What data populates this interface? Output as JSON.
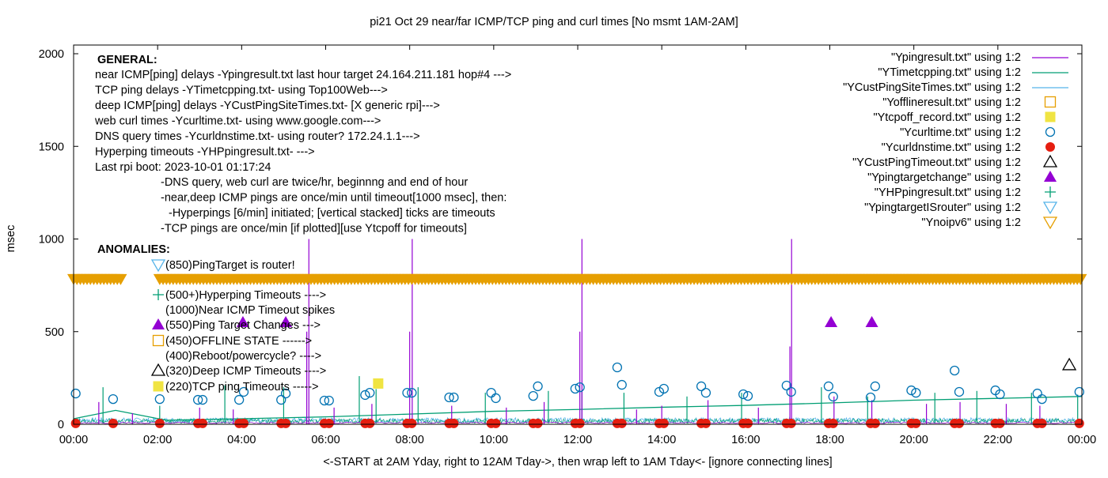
{
  "chart_data": {
    "type": "line",
    "title": "pi21 Oct 29  near/far ICMP/TCP ping and curl times [No msmt 1AM-2AM]",
    "xlabel": "<-START at 2AM Yday, right to 12AM Tday->, then wrap left to 1AM Tday<- [ignore connecting lines]",
    "ylabel": "msec",
    "xlim": [
      0,
      24
    ],
    "ylim": [
      0,
      2000
    ],
    "x_ticks": [
      "00:00",
      "02:00",
      "04:00",
      "06:00",
      "08:00",
      "10:00",
      "12:00",
      "14:00",
      "16:00",
      "18:00",
      "20:00",
      "22:00",
      "00:00"
    ],
    "y_ticks": [
      "0",
      "500",
      "1000",
      "1500",
      "2000"
    ],
    "colors": {
      "ypingresult": "#9400d3",
      "ytimetcpping": "#009e73",
      "ycustping": "#56b4e9",
      "offline": "#e69f00",
      "tcpoff": "#f0e442",
      "curl": "#0072b2",
      "dns": "#e51e10",
      "custtimeout": "#000000",
      "targetchange": "#9400d3",
      "hyperping": "#009e73",
      "isrouter": "#56b4e9",
      "noipv6": "#e69f00"
    },
    "general": {
      "heading": "GENERAL:",
      "lines": [
        "near ICMP[ping] delays -Ypingresult.txt last hour target 24.164.211.181 hop#4 --->",
        "TCP ping delays -YTimetcpping.txt- using Top100Web--->",
        "deep ICMP[ping] delays -YCustPingSiteTimes.txt- [X generic rpi]--->",
        "web curl times -Ycurltime.txt- using www.google.com--->",
        "DNS query times -Ycurldnstime.txt- using router? 172.24.1.1--->",
        "Hyperping timeouts -YHPpingresult.txt- --->",
        "Last rpi boot: 2023-10-01 01:17:24"
      ],
      "notes": [
        "-DNS query, web curl are twice/hr, beginnng and end of hour",
        "-near,deep ICMP pings are once/min until timeout[1000 msec], then:",
        "-Hyperpings [6/min] initiated; [vertical stacked] ticks are timeouts",
        "-TCP pings are once/min [if plotted][use Ytcpoff for timeouts]"
      ]
    },
    "anomalies": {
      "heading": "ANOMALIES:",
      "items": [
        {
          "label": "(850)PingTarget is router!",
          "marker": "isrouter"
        },
        {
          "label": "(500+)Hyperping Timeouts ---->",
          "marker": "hyperping"
        },
        {
          "label": "(1000)Near ICMP Timeout spikes",
          "marker": ""
        },
        {
          "label": "(550)Ping Target Changes --->",
          "marker": "targetchange"
        },
        {
          "label": "(450)OFFLINE STATE ------>",
          "marker": "offline"
        },
        {
          "label": "(400)Reboot/powercycle? ---->",
          "marker": ""
        },
        {
          "label": "(320)Deep ICMP Timeouts ---->",
          "marker": "custtimeout"
        },
        {
          "label": "(220)TCP ping Timeouts ----->",
          "marker": "tcpoff"
        }
      ]
    },
    "legend": [
      {
        "label": "\"Ypingresult.txt\" using 1:2",
        "key": "ypingresult",
        "style": "line"
      },
      {
        "label": "\"YTimetcpping.txt\" using 1:2",
        "key": "ytimetcpping",
        "style": "line"
      },
      {
        "label": "\"YCustPingSiteTimes.txt\" using 1:2",
        "key": "ycustping",
        "style": "line"
      },
      {
        "label": "\"Yofflineresult.txt\" using 1:2",
        "key": "offline",
        "style": "open-square"
      },
      {
        "label": "\"Ytcpoff_record.txt\" using 1:2",
        "key": "tcpoff",
        "style": "filled-square"
      },
      {
        "label": "\"Ycurltime.txt\" using 1:2",
        "key": "curl",
        "style": "open-circle"
      },
      {
        "label": "\"Ycurldnstime.txt\" using 1:2",
        "key": "dns",
        "style": "filled-circle"
      },
      {
        "label": "\"YCustPingTimeout.txt\" using 1:2",
        "key": "custtimeout",
        "style": "open-triangle"
      },
      {
        "label": "\"Ypingtargetchange\" using 1:2",
        "key": "targetchange",
        "style": "filled-triangle"
      },
      {
        "label": "\"YHPpingresult.txt\" using 1:2",
        "key": "hyperping",
        "style": "plus"
      },
      {
        "label": "\"YpingtargetISrouter\" using 1:2",
        "key": "isrouter",
        "style": "open-down-triangle"
      },
      {
        "label": "\"Ynoipv6\" using 1:2",
        "key": "noipv6",
        "style": "open-down-triangle"
      }
    ],
    "series": {
      "ypingresult_baseline": 8,
      "ypingresult_spikes": [
        [
          0.6,
          120
        ],
        [
          1.4,
          60
        ],
        [
          3.0,
          90
        ],
        [
          3.8,
          80
        ],
        [
          5.6,
          1000
        ],
        [
          5.55,
          500
        ],
        [
          6.2,
          90
        ],
        [
          7.1,
          110
        ],
        [
          8.06,
          1000
        ],
        [
          8.0,
          500
        ],
        [
          9.0,
          100
        ],
        [
          10.3,
          90
        ],
        [
          11.2,
          120
        ],
        [
          12.1,
          1000
        ],
        [
          12.05,
          500
        ],
        [
          13.4,
          80
        ],
        [
          14.0,
          100
        ],
        [
          15.1,
          130
        ],
        [
          16.3,
          90
        ],
        [
          17.09,
          1000
        ],
        [
          17.05,
          420
        ],
        [
          18.1,
          150
        ],
        [
          19.0,
          130
        ],
        [
          20.3,
          110
        ],
        [
          21.1,
          120
        ],
        [
          22.2,
          110
        ],
        [
          23.0,
          100
        ]
      ],
      "ytimetcpping_trend": [
        [
          0,
          30
        ],
        [
          1.0,
          75
        ],
        [
          2.2,
          22
        ],
        [
          4,
          30
        ],
        [
          6,
          40
        ],
        [
          8,
          55
        ],
        [
          10,
          70
        ],
        [
          12,
          80
        ],
        [
          14,
          92
        ],
        [
          16,
          102
        ],
        [
          18,
          115
        ],
        [
          20,
          130
        ],
        [
          22,
          140
        ],
        [
          24,
          150
        ]
      ],
      "ytimetcpping_spikes": [
        [
          0.7,
          200
        ],
        [
          2.05,
          100
        ],
        [
          3.6,
          210
        ],
        [
          5.0,
          200
        ],
        [
          6.8,
          260
        ],
        [
          7.2,
          190
        ],
        [
          8.2,
          200
        ],
        [
          9.8,
          170
        ],
        [
          11.3,
          180
        ],
        [
          12.1,
          180
        ],
        [
          13.1,
          170
        ],
        [
          14.6,
          150
        ],
        [
          15.9,
          170
        ],
        [
          17.8,
          200
        ],
        [
          18.9,
          150
        ],
        [
          20.5,
          170
        ],
        [
          21.5,
          180
        ],
        [
          22.8,
          170
        ],
        [
          23.9,
          160
        ]
      ],
      "ycustping_level": 25,
      "offline": [],
      "tcpoff": [
        [
          7.25,
          220
        ]
      ],
      "curl": [
        [
          0.05,
          166
        ],
        [
          0.94,
          136
        ],
        [
          2.05,
          136
        ],
        [
          2.96,
          132
        ],
        [
          3.07,
          132
        ],
        [
          3.94,
          132
        ],
        [
          4.05,
          175
        ],
        [
          4.94,
          132
        ],
        [
          5.05,
          166
        ],
        [
          5.97,
          128
        ],
        [
          6.08,
          128
        ],
        [
          6.94,
          158
        ],
        [
          7.05,
          170
        ],
        [
          7.94,
          170
        ],
        [
          8.05,
          170
        ],
        [
          8.94,
          145
        ],
        [
          9.05,
          145
        ],
        [
          9.94,
          170
        ],
        [
          10.05,
          141
        ],
        [
          10.94,
          153
        ],
        [
          11.05,
          205
        ],
        [
          11.94,
          192
        ],
        [
          12.05,
          200
        ],
        [
          12.94,
          307
        ],
        [
          13.05,
          213
        ],
        [
          13.94,
          175
        ],
        [
          14.05,
          192
        ],
        [
          14.94,
          205
        ],
        [
          15.05,
          170
        ],
        [
          15.94,
          162
        ],
        [
          16.05,
          153
        ],
        [
          16.97,
          209
        ],
        [
          17.08,
          175
        ],
        [
          17.97,
          205
        ],
        [
          18.08,
          149
        ],
        [
          18.97,
          145
        ],
        [
          19.08,
          205
        ],
        [
          19.94,
          183
        ],
        [
          20.05,
          170
        ],
        [
          20.97,
          290
        ],
        [
          21.08,
          175
        ],
        [
          21.94,
          183
        ],
        [
          22.05,
          162
        ],
        [
          22.94,
          166
        ],
        [
          23.05,
          136
        ],
        [
          23.94,
          175
        ]
      ],
      "dns": [
        [
          0.05,
          5
        ],
        [
          0.94,
          5
        ],
        [
          2.05,
          5
        ],
        [
          2.96,
          5
        ],
        [
          3.07,
          5
        ],
        [
          3.94,
          5
        ],
        [
          4.05,
          5
        ],
        [
          4.94,
          5
        ],
        [
          5.05,
          5
        ],
        [
          5.97,
          5
        ],
        [
          6.08,
          5
        ],
        [
          6.94,
          5
        ],
        [
          7.05,
          5
        ],
        [
          7.94,
          5
        ],
        [
          8.05,
          5
        ],
        [
          8.94,
          5
        ],
        [
          9.05,
          5
        ],
        [
          9.94,
          5
        ],
        [
          10.05,
          5
        ],
        [
          10.94,
          5
        ],
        [
          11.05,
          5
        ],
        [
          11.94,
          5
        ],
        [
          12.05,
          5
        ],
        [
          12.94,
          5
        ],
        [
          13.05,
          5
        ],
        [
          13.94,
          5
        ],
        [
          14.05,
          5
        ],
        [
          14.94,
          5
        ],
        [
          15.05,
          5
        ],
        [
          15.94,
          5
        ],
        [
          16.05,
          5
        ],
        [
          16.97,
          5
        ],
        [
          17.08,
          5
        ],
        [
          17.97,
          5
        ],
        [
          18.08,
          5
        ],
        [
          18.97,
          5
        ],
        [
          19.08,
          5
        ],
        [
          19.94,
          5
        ],
        [
          20.05,
          5
        ],
        [
          20.97,
          5
        ],
        [
          21.08,
          5
        ],
        [
          21.94,
          5
        ],
        [
          22.05,
          5
        ],
        [
          22.94,
          5
        ],
        [
          23.05,
          5
        ],
        [
          23.94,
          5
        ]
      ],
      "custtimeout": [
        [
          23.7,
          320
        ]
      ],
      "targetchange": [
        [
          4.03,
          550
        ],
        [
          5.05,
          550
        ],
        [
          18.03,
          550
        ],
        [
          19.0,
          550
        ]
      ],
      "noipv6_value": 785,
      "noipv6_ranges": [
        [
          0,
          1.15
        ],
        [
          2.05,
          24
        ]
      ]
    }
  }
}
